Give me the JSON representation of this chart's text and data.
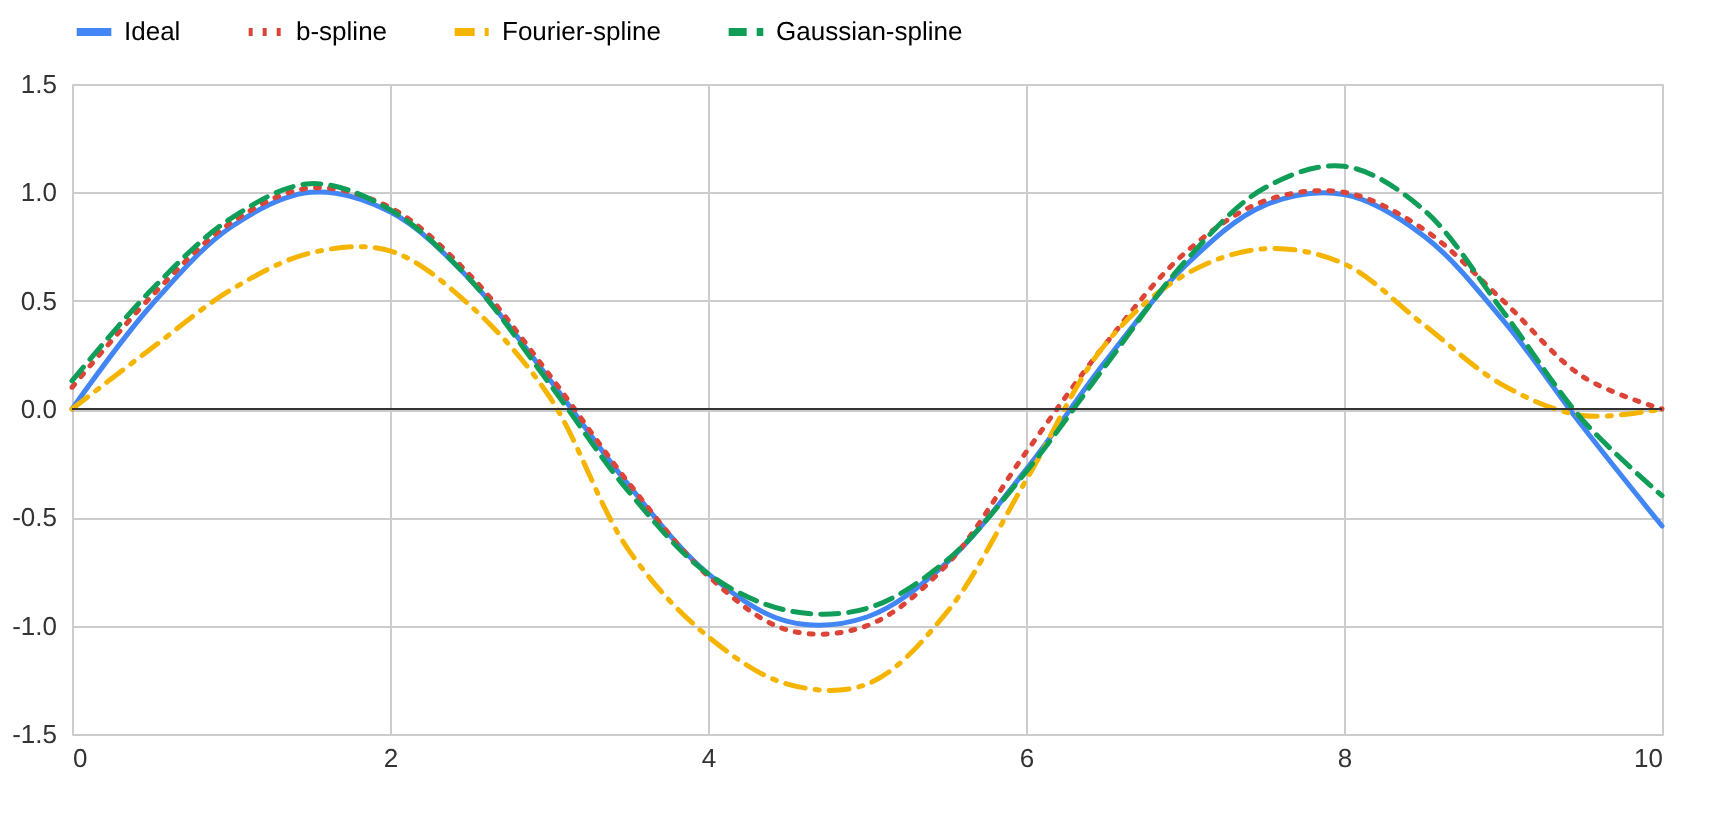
{
  "chart_data": {
    "type": "line",
    "x": [
      0,
      0.5,
      1,
      1.5,
      2,
      2.5,
      3,
      3.5,
      4,
      4.5,
      5,
      5.5,
      6,
      6.5,
      7,
      7.5,
      8,
      8.5,
      9,
      9.5,
      10
    ],
    "series": [
      {
        "name": "Ideal",
        "color": "#4285f4",
        "line_style": "solid",
        "values": [
          0,
          0.48,
          0.84,
          1.0,
          0.91,
          0.6,
          0.14,
          -0.35,
          -0.76,
          -0.98,
          -0.96,
          -0.71,
          -0.28,
          0.22,
          0.66,
          0.94,
          0.99,
          0.8,
          0.41,
          -0.08,
          -0.54
        ]
      },
      {
        "name": "b-spline",
        "color": "#db4437",
        "line_style": "dotted",
        "values": [
          0.1,
          0.52,
          0.86,
          1.02,
          0.93,
          0.62,
          0.16,
          -0.34,
          -0.77,
          -1.02,
          -1.0,
          -0.72,
          -0.2,
          0.3,
          0.72,
          0.96,
          1.0,
          0.83,
          0.5,
          0.15,
          0.0
        ]
      },
      {
        "name": "Fourier-spline",
        "color": "#f4b400",
        "line_style": "dashdot",
        "values": [
          0,
          0.28,
          0.55,
          0.72,
          0.73,
          0.48,
          0.06,
          -0.65,
          -1.05,
          -1.27,
          -1.27,
          -0.94,
          -0.33,
          0.3,
          0.62,
          0.74,
          0.67,
          0.39,
          0.11,
          -0.03,
          0.0
        ]
      },
      {
        "name": "Gaussian-spline",
        "color": "#0f9d58",
        "line_style": "dashed",
        "values": [
          0.13,
          0.55,
          0.88,
          1.04,
          0.92,
          0.6,
          0.12,
          -0.38,
          -0.76,
          -0.93,
          -0.92,
          -0.7,
          -0.29,
          0.2,
          0.68,
          1.02,
          1.12,
          0.92,
          0.45,
          -0.05,
          -0.4
        ]
      }
    ],
    "xlim": [
      0,
      10
    ],
    "xticks": [
      0,
      2,
      4,
      6,
      8,
      10
    ],
    "ylim": [
      -1.5,
      1.5
    ],
    "yticks": [
      {
        "value": -1.5,
        "label": "-1.5"
      },
      {
        "value": -1,
        "label": "-1.0"
      },
      {
        "value": -0.5,
        "label": "-0.5"
      },
      {
        "value": 0,
        "label": "0.0"
      },
      {
        "value": 0.5,
        "label": "0.5"
      },
      {
        "value": 1,
        "label": "1.0"
      },
      {
        "value": 1.5,
        "label": "1.5"
      }
    ],
    "ref_lines": [
      {
        "axis": "y",
        "value": 0,
        "color": "#333333"
      }
    ],
    "grid": true,
    "legend": "top"
  }
}
